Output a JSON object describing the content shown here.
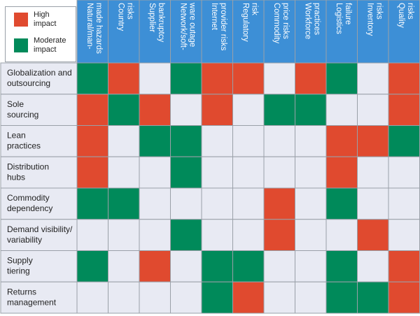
{
  "legend": {
    "high": {
      "line1": "High",
      "line2": "impact",
      "color": "#e04a2f"
    },
    "moderate": {
      "line1": "Moderate",
      "line2": "impact",
      "color": "#008a5a"
    }
  },
  "colors": {
    "header_bg": "#3d8fd6",
    "cell_empty": "#e8eaf3",
    "row_label_bg": "#e8eaf3",
    "grid": "#9aa0a8"
  },
  "chart_data": {
    "type": "heatmap",
    "columns": [
      [
        "Natural/man-",
        "made hazards"
      ],
      [
        "Country",
        "risks"
      ],
      [
        "Supplier",
        "bankruptcy"
      ],
      [
        "Network/soft-",
        "ware outage"
      ],
      [
        "Internet",
        "provider risks"
      ],
      [
        "Regulatory",
        "risk"
      ],
      [
        "Commodity",
        "price risks"
      ],
      [
        "Workforce",
        "practices"
      ],
      [
        "Logistics",
        "failure"
      ],
      [
        "Inventory",
        "risks"
      ],
      [
        "Quality",
        "risks"
      ]
    ],
    "rows": [
      [
        "Globalization and",
        "outsourcing"
      ],
      [
        "Sole",
        "sourcing"
      ],
      [
        "Lean",
        "practices"
      ],
      [
        "Distribution",
        "hubs"
      ],
      [
        "Commodity",
        "dependency"
      ],
      [
        "Demand visibility/",
        "variability"
      ],
      [
        "Supply",
        "tiering"
      ],
      [
        "Returns",
        "management"
      ]
    ],
    "value_key": {
      "H": "High impact",
      "M": "Moderate impact",
      "": "None"
    },
    "values": [
      [
        "M",
        "H",
        "",
        "M",
        "H",
        "H",
        "",
        "H",
        "M",
        "",
        "H"
      ],
      [
        "H",
        "M",
        "H",
        "",
        "H",
        "",
        "M",
        "M",
        "",
        "",
        "H"
      ],
      [
        "H",
        "",
        "M",
        "M",
        "",
        "",
        "",
        "",
        "H",
        "H",
        "M"
      ],
      [
        "H",
        "",
        "",
        "M",
        "",
        "",
        "",
        "",
        "H",
        "",
        ""
      ],
      [
        "M",
        "M",
        "",
        "",
        "",
        "",
        "H",
        "",
        "M",
        "",
        ""
      ],
      [
        "",
        "",
        "",
        "M",
        "",
        "",
        "H",
        "",
        "",
        "H",
        ""
      ],
      [
        "M",
        "",
        "H",
        "",
        "M",
        "M",
        "",
        "",
        "M",
        "",
        "H"
      ],
      [
        "",
        "",
        "",
        "",
        "M",
        "H",
        "",
        "",
        "M",
        "M",
        "H"
      ]
    ]
  }
}
